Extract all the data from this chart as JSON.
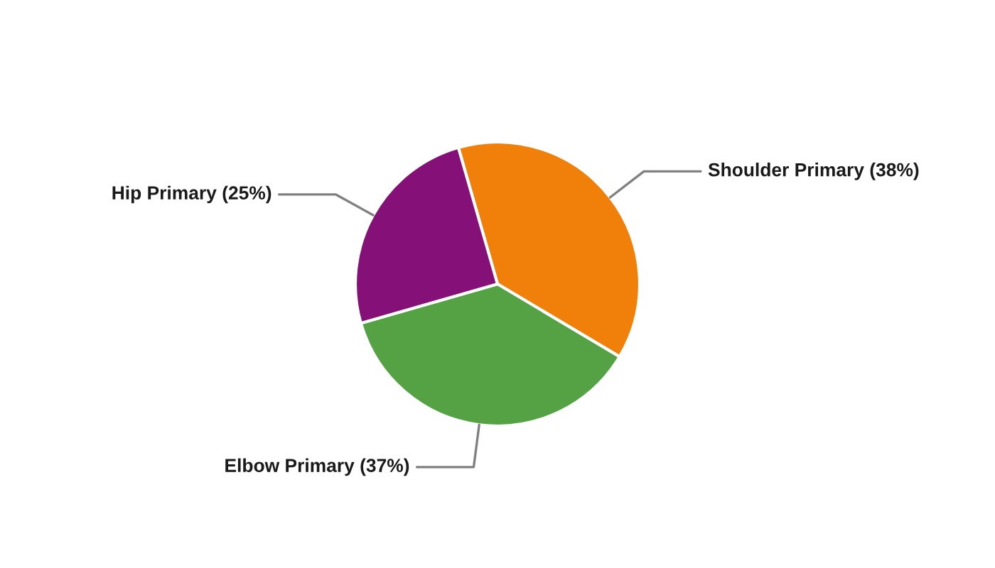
{
  "chart_data": {
    "type": "pie",
    "categories": [
      "Shoulder Primary (38%)",
      "Elbow Primary (37%)",
      "Hip Primary (25%)"
    ],
    "values": [
      38,
      37,
      25
    ],
    "colors": [
      "#f0800a",
      "#55a244",
      "#851077"
    ],
    "legend": false
  }
}
